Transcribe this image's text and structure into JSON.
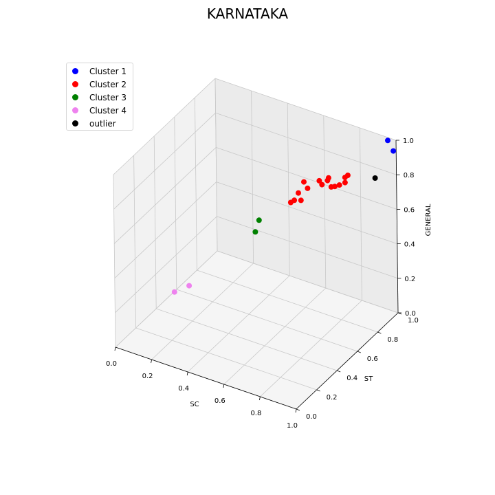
{
  "chart_data": {
    "type": "scatter",
    "projection": "3d",
    "title": "KARNATAKA",
    "xlabel": "SC",
    "ylabel": "ST",
    "zlabel": "GENERAL",
    "xlim": [
      0,
      1
    ],
    "ylim": [
      0,
      1
    ],
    "zlim": [
      0,
      1
    ],
    "x_ticks": [
      "0.0",
      "0.2",
      "0.4",
      "0.6",
      "0.8",
      "1.0"
    ],
    "y_ticks": [
      "0.0",
      "0.2",
      "0.4",
      "0.6",
      "0.8",
      "1.0"
    ],
    "z_ticks": [
      "0.0",
      "0.2",
      "0.4",
      "0.6",
      "0.8",
      "1.0"
    ],
    "grid": true,
    "legend_position": "upper-left",
    "series": [
      {
        "name": "Cluster 1",
        "color": "#0000ff",
        "points": [
          [
            0.96,
            0.99,
            0.99
          ],
          [
            0.99,
            0.99,
            0.94
          ]
        ]
      },
      {
        "name": "Cluster 2",
        "color": "#ff0000",
        "points": [
          [
            0.64,
            0.73,
            0.78
          ],
          [
            0.72,
            0.74,
            0.81
          ],
          [
            0.76,
            0.75,
            0.82
          ],
          [
            0.74,
            0.73,
            0.8
          ],
          [
            0.78,
            0.75,
            0.79
          ],
          [
            0.76,
            0.76,
            0.83
          ],
          [
            0.82,
            0.76,
            0.81
          ],
          [
            0.84,
            0.78,
            0.85
          ],
          [
            0.84,
            0.78,
            0.82
          ],
          [
            0.66,
            0.73,
            0.75
          ],
          [
            0.62,
            0.71,
            0.72
          ],
          [
            0.64,
            0.7,
            0.69
          ],
          [
            0.62,
            0.67,
            0.7
          ],
          [
            0.6,
            0.67,
            0.68
          ],
          [
            0.85,
            0.79,
            0.86
          ],
          [
            0.8,
            0.75,
            0.8
          ]
        ]
      },
      {
        "name": "Cluster 3",
        "color": "#008000",
        "points": [
          [
            0.48,
            0.57,
            0.59
          ],
          [
            0.47,
            0.55,
            0.53
          ]
        ]
      },
      {
        "name": "Cluster 4",
        "color": "#ee82ee",
        "points": [
          [
            0.23,
            0.32,
            0.26
          ],
          [
            0.16,
            0.3,
            0.21
          ]
        ]
      },
      {
        "name": "outlier",
        "color": "#000000",
        "points": [
          [
            0.95,
            0.88,
            0.83
          ]
        ]
      }
    ]
  }
}
